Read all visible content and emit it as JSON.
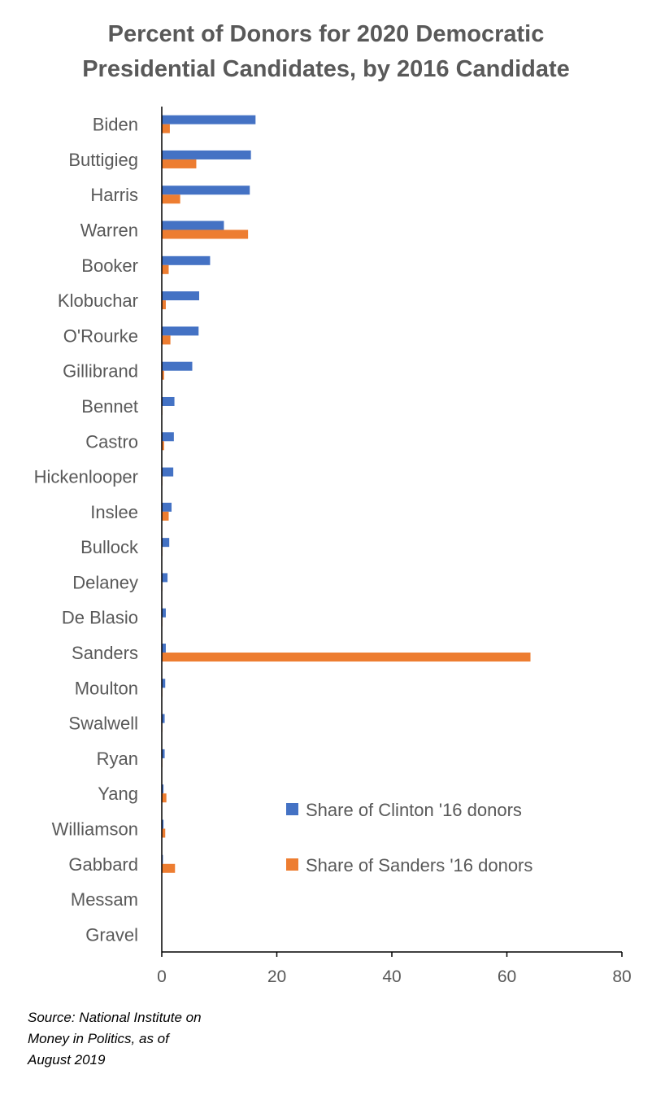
{
  "chart_data": {
    "type": "bar",
    "orientation": "horizontal",
    "title_lines": [
      "Percent of Donors for 2020 Democratic",
      "Presidential Candidates, by 2016 Candidate"
    ],
    "categories": [
      "Biden",
      "Buttigieg",
      "Harris",
      "Warren",
      "Booker",
      "Klobuchar",
      "O'Rourke",
      "Gillibrand",
      "Bennet",
      "Castro",
      "Hickenlooper",
      "Inslee",
      "Bullock",
      "Delaney",
      "De Blasio",
      "Sanders",
      "Moulton",
      "Swalwell",
      "Ryan",
      "Yang",
      "Williamson",
      "Gabbard",
      "Messam",
      "Gravel"
    ],
    "series": [
      {
        "name": "Share of Clinton '16 donors",
        "color": "#4472C4",
        "values": [
          16.3,
          15.5,
          15.3,
          10.8,
          8.4,
          6.5,
          6.4,
          5.3,
          2.2,
          2.1,
          2.0,
          1.7,
          1.3,
          1.0,
          0.7,
          0.7,
          0.6,
          0.5,
          0.5,
          0.3,
          0.3,
          0.2,
          0.0,
          0.0
        ]
      },
      {
        "name": "Share of Sanders '16 donors",
        "color": "#ED7D31",
        "values": [
          1.4,
          6.0,
          3.2,
          15.0,
          1.2,
          0.7,
          1.5,
          0.4,
          0.1,
          0.4,
          0.1,
          1.2,
          0.1,
          0.1,
          0.1,
          64.1,
          0.1,
          0.1,
          0.1,
          0.8,
          0.6,
          2.3,
          0.0,
          0.0
        ]
      }
    ],
    "xlim": [
      0,
      80
    ],
    "x_ticks": [
      0,
      20,
      40,
      60,
      80
    ],
    "x_tick_labels": [
      "0",
      "20",
      "40",
      "60",
      "80"
    ],
    "grid": false,
    "legend_position": "right"
  },
  "source_lines": [
    "Source: National Institute on",
    "Money in Politics, as of",
    "August 2019"
  ]
}
